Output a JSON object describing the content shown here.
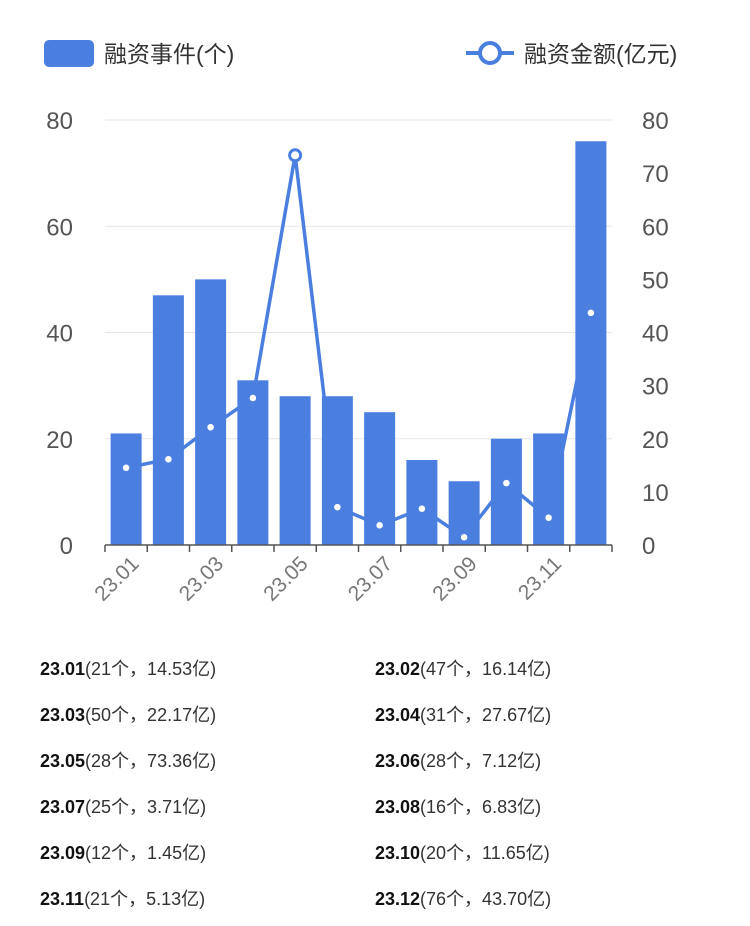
{
  "chart_data": {
    "type": "bar",
    "categories": [
      "23.01",
      "23.02",
      "23.03",
      "23.04",
      "23.05",
      "23.06",
      "23.07",
      "23.08",
      "23.09",
      "23.10",
      "23.11",
      "23.12"
    ],
    "x_tick_labels": [
      "23.01",
      "23.03",
      "23.05",
      "23.07",
      "23.09",
      "23.11"
    ],
    "series": [
      {
        "name": "融资事件(个)",
        "type": "bar",
        "axis": "left",
        "values": [
          21,
          47,
          50,
          31,
          28,
          28,
          25,
          16,
          12,
          20,
          21,
          76
        ]
      },
      {
        "name": "融资金额(亿元)",
        "type": "line",
        "axis": "right",
        "values": [
          14.53,
          16.14,
          22.17,
          27.67,
          73.36,
          7.12,
          3.71,
          6.83,
          1.45,
          11.65,
          5.13,
          43.7
        ]
      }
    ],
    "y_left": {
      "lim": [
        0,
        80
      ],
      "ticks": [
        0,
        20,
        40,
        60,
        80
      ]
    },
    "y_right": {
      "lim": [
        0,
        80
      ],
      "ticks": [
        0,
        10,
        20,
        30,
        40,
        50,
        60,
        70,
        80
      ]
    },
    "legend_position": "top",
    "grid": true,
    "colors": {
      "bar": "#4a7fe0",
      "line": "#4a7fe0",
      "grid": "#e6e6e6",
      "axis": "#555555"
    }
  },
  "summary": [
    {
      "month": "23.01",
      "detail": "(21个，14.53亿)"
    },
    {
      "month": "23.02",
      "detail": "(47个，16.14亿)"
    },
    {
      "month": "23.03",
      "detail": "(50个，22.17亿)"
    },
    {
      "month": "23.04",
      "detail": "(31个，27.67亿)"
    },
    {
      "month": "23.05",
      "detail": "(28个，73.36亿)"
    },
    {
      "month": "23.06",
      "detail": "(28个，7.12亿)"
    },
    {
      "month": "23.07",
      "detail": "(25个，3.71亿)"
    },
    {
      "month": "23.08",
      "detail": "(16个，6.83亿)"
    },
    {
      "month": "23.09",
      "detail": "(12个，1.45亿)"
    },
    {
      "month": "23.10",
      "detail": "(20个，11.65亿)"
    },
    {
      "month": "23.11",
      "detail": "(21个，5.13亿)"
    },
    {
      "month": "23.12",
      "detail": "(76个，43.70亿)"
    }
  ]
}
